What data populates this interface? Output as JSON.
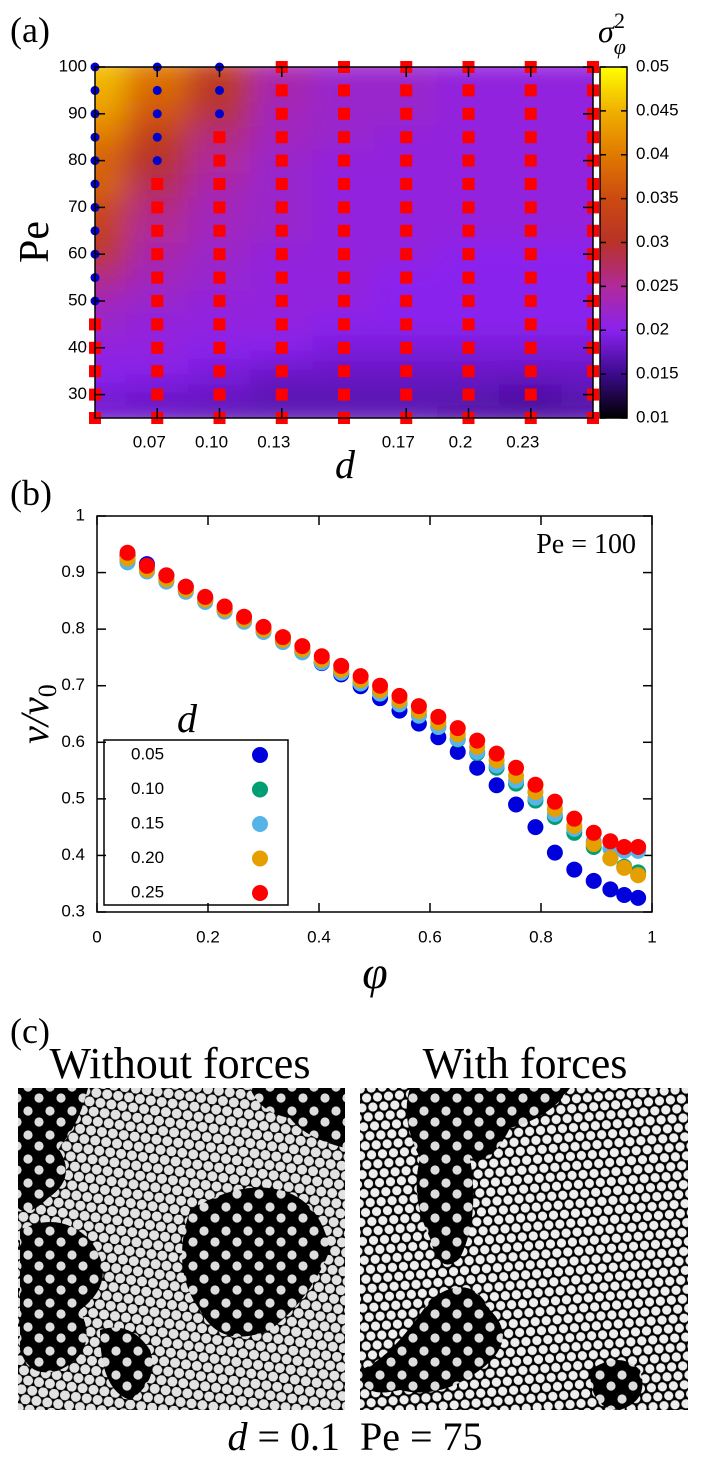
{
  "panel_labels": [
    "(a)",
    "(b)",
    "(c)"
  ],
  "chart_data": [
    {
      "type": "heatmap",
      "x": [
        0.05,
        0.075,
        0.1,
        0.125,
        0.15,
        0.175,
        0.2,
        0.225,
        0.25
      ],
      "y": [
        25,
        30,
        35,
        40,
        45,
        50,
        55,
        60,
        65,
        70,
        75,
        80,
        85,
        90,
        95,
        100
      ],
      "z": [
        [
          0.018,
          0.018,
          0.017,
          0.017,
          0.017,
          0.017,
          0.016,
          0.016,
          0.016
        ],
        [
          0.019,
          0.018,
          0.018,
          0.017,
          0.017,
          0.017,
          0.017,
          0.016,
          0.017
        ],
        [
          0.02,
          0.02,
          0.019,
          0.018,
          0.018,
          0.018,
          0.018,
          0.018,
          0.018
        ],
        [
          0.021,
          0.021,
          0.02,
          0.02,
          0.019,
          0.019,
          0.019,
          0.019,
          0.019
        ],
        [
          0.022,
          0.021,
          0.021,
          0.021,
          0.02,
          0.02,
          0.02,
          0.02,
          0.02
        ],
        [
          0.023,
          0.022,
          0.021,
          0.021,
          0.021,
          0.02,
          0.02,
          0.02,
          0.02
        ],
        [
          0.026,
          0.023,
          0.022,
          0.021,
          0.021,
          0.02,
          0.02,
          0.02,
          0.02
        ],
        [
          0.031,
          0.024,
          0.022,
          0.021,
          0.021,
          0.021,
          0.02,
          0.02,
          0.02
        ],
        [
          0.033,
          0.025,
          0.023,
          0.022,
          0.021,
          0.021,
          0.021,
          0.021,
          0.021
        ],
        [
          0.034,
          0.026,
          0.023,
          0.022,
          0.021,
          0.021,
          0.021,
          0.021,
          0.021
        ],
        [
          0.038,
          0.028,
          0.024,
          0.022,
          0.021,
          0.021,
          0.021,
          0.021,
          0.021
        ],
        [
          0.037,
          0.03,
          0.025,
          0.022,
          0.021,
          0.021,
          0.021,
          0.021,
          0.021
        ],
        [
          0.04,
          0.032,
          0.026,
          0.023,
          0.022,
          0.021,
          0.021,
          0.021,
          0.021
        ],
        [
          0.043,
          0.036,
          0.029,
          0.023,
          0.022,
          0.022,
          0.021,
          0.021,
          0.021
        ],
        [
          0.045,
          0.038,
          0.031,
          0.024,
          0.022,
          0.022,
          0.021,
          0.021,
          0.021
        ],
        [
          0.046,
          0.04,
          0.032,
          0.024,
          0.022,
          0.022,
          0.021,
          0.021,
          0.021
        ]
      ],
      "zlim": [
        0.01,
        0.05
      ],
      "zticks": [
        0.01,
        0.015,
        0.02,
        0.025,
        0.03,
        0.035,
        0.04,
        0.045,
        0.05
      ],
      "colormap": [
        "#000000",
        "#3c0a8c",
        "#8a22ee",
        "#b02a9a",
        "#b83228",
        "#cc4a10",
        "#e07a00",
        "#f0b000",
        "#ffff00"
      ],
      "colorbar_label": {
        "base": "σ",
        "sub": "φ",
        "sup": "2"
      },
      "x_label": "d",
      "y_label": "Pe",
      "xlim": [
        0.05,
        0.25
      ],
      "ylim": [
        25,
        100
      ],
      "xticks": [
        {
          "value": 0.075,
          "label": "0.07"
        },
        {
          "value": 0.1,
          "label": "0.10"
        },
        {
          "value": 0.125,
          "label": "0.13"
        },
        {
          "value": 0.175,
          "label": "0.17"
        },
        {
          "value": 0.2,
          "label": "0.2"
        },
        {
          "value": 0.225,
          "label": "0.23"
        }
      ],
      "yticks": [
        30,
        40,
        50,
        60,
        70,
        80,
        90,
        100
      ],
      "markers": [
        {
          "color": "#ff0000",
          "shape": "square",
          "points": [
            {
              "x": 0.05,
              "y": [
                25,
                30,
                35,
                40,
                45
              ]
            },
            {
              "x": 0.075,
              "y": [
                25,
                30,
                35,
                40,
                45,
                50,
                55,
                60,
                65,
                70,
                75
              ]
            },
            {
              "x": 0.1,
              "y": [
                25,
                30,
                35,
                40,
                45,
                50,
                55,
                60,
                65,
                70,
                75,
                80,
                85
              ]
            },
            {
              "x": 0.125,
              "y": [
                25,
                30,
                35,
                40,
                45,
                50,
                55,
                60,
                65,
                70,
                75,
                80,
                85,
                90,
                95,
                100
              ]
            },
            {
              "x": 0.15,
              "y": [
                25,
                30,
                35,
                40,
                45,
                50,
                55,
                60,
                65,
                70,
                75,
                80,
                85,
                90,
                95,
                100
              ]
            },
            {
              "x": 0.175,
              "y": [
                25,
                30,
                35,
                40,
                45,
                50,
                55,
                60,
                65,
                70,
                75,
                80,
                85,
                90,
                95,
                100
              ]
            },
            {
              "x": 0.2,
              "y": [
                25,
                30,
                35,
                40,
                45,
                50,
                55,
                60,
                65,
                70,
                75,
                80,
                85,
                90,
                95,
                100
              ]
            },
            {
              "x": 0.225,
              "y": [
                25,
                30,
                35,
                40,
                45,
                50,
                55,
                60,
                65,
                70,
                75,
                80,
                85,
                90,
                95,
                100
              ]
            },
            {
              "x": 0.25,
              "y": [
                25,
                30,
                35,
                40,
                45,
                50,
                55,
                60,
                65,
                70,
                75,
                80,
                85,
                90,
                95,
                100
              ]
            }
          ]
        },
        {
          "color": "#0000cc",
          "shape": "circle",
          "points": [
            {
              "x": 0.05,
              "y": [
                50,
                55,
                60,
                65,
                70,
                75,
                80,
                85,
                90,
                95,
                100
              ]
            },
            {
              "x": 0.075,
              "y": [
                80,
                85,
                90,
                95,
                100
              ]
            },
            {
              "x": 0.1,
              "y": [
                90,
                95,
                100
              ]
            }
          ]
        }
      ]
    },
    {
      "type": "scatter",
      "x": [
        0.055,
        0.09,
        0.125,
        0.16,
        0.195,
        0.23,
        0.265,
        0.3,
        0.335,
        0.37,
        0.405,
        0.44,
        0.475,
        0.51,
        0.545,
        0.58,
        0.615,
        0.65,
        0.685,
        0.72,
        0.755,
        0.79,
        0.825,
        0.86,
        0.895,
        0.925,
        0.95,
        0.975
      ],
      "series": [
        {
          "name": "0.05",
          "color": "#0000dd",
          "values": [
            0.93,
            0.915,
            0.895,
            0.875,
            0.855,
            0.836,
            0.817,
            0.798,
            0.779,
            0.76,
            0.74,
            0.72,
            0.699,
            0.678,
            0.656,
            0.633,
            0.609,
            0.583,
            0.555,
            0.524,
            0.49,
            0.45,
            0.405,
            0.375,
            0.355,
            0.34,
            0.33,
            0.325
          ]
        },
        {
          "name": "0.10",
          "color": "#009e73",
          "values": [
            0.922,
            0.904,
            0.886,
            0.868,
            0.85,
            0.833,
            0.815,
            0.797,
            0.779,
            0.761,
            0.743,
            0.725,
            0.706,
            0.688,
            0.668,
            0.648,
            0.627,
            0.605,
            0.581,
            0.555,
            0.527,
            0.497,
            0.468,
            0.44,
            0.415,
            0.395,
            0.38,
            0.37
          ]
        },
        {
          "name": "0.15",
          "color": "#56b4e9",
          "values": [
            0.918,
            0.902,
            0.884,
            0.866,
            0.848,
            0.831,
            0.813,
            0.795,
            0.777,
            0.759,
            0.741,
            0.723,
            0.704,
            0.686,
            0.667,
            0.647,
            0.627,
            0.606,
            0.583,
            0.559,
            0.532,
            0.502,
            0.473,
            0.447,
            0.425,
            0.412,
            0.408,
            0.408
          ]
        },
        {
          "name": "0.20",
          "color": "#e69f00",
          "values": [
            0.925,
            0.905,
            0.888,
            0.87,
            0.852,
            0.835,
            0.817,
            0.799,
            0.781,
            0.764,
            0.746,
            0.728,
            0.71,
            0.692,
            0.674,
            0.655,
            0.635,
            0.614,
            0.592,
            0.568,
            0.541,
            0.512,
            0.482,
            0.452,
            0.42,
            0.395,
            0.378,
            0.365
          ]
        },
        {
          "name": "0.25",
          "color": "#ff0000",
          "values": [
            0.935,
            0.912,
            0.895,
            0.875,
            0.857,
            0.84,
            0.822,
            0.804,
            0.786,
            0.77,
            0.752,
            0.735,
            0.717,
            0.7,
            0.682,
            0.664,
            0.645,
            0.625,
            0.603,
            0.58,
            0.555,
            0.525,
            0.495,
            0.465,
            0.44,
            0.425,
            0.415,
            0.415
          ]
        }
      ],
      "legend_title": "d",
      "legend": "lower left",
      "annotation": "Pe = 100",
      "x_label": "φ",
      "y_label": {
        "main": "v/v",
        "sub": "0"
      },
      "xlim": [
        0,
        1
      ],
      "ylim": [
        0.3,
        1
      ],
      "xticks": [
        0,
        0.2,
        0.4,
        0.6,
        0.8,
        1
      ],
      "yticks": [
        0.3,
        0.4,
        0.5,
        0.6,
        0.7,
        0.8,
        0.9,
        1
      ]
    }
  ],
  "panel_c": {
    "titles": [
      "Without forces",
      "With forces"
    ],
    "caption": [
      "d",
      " = 0.1  Pe = 75"
    ]
  }
}
